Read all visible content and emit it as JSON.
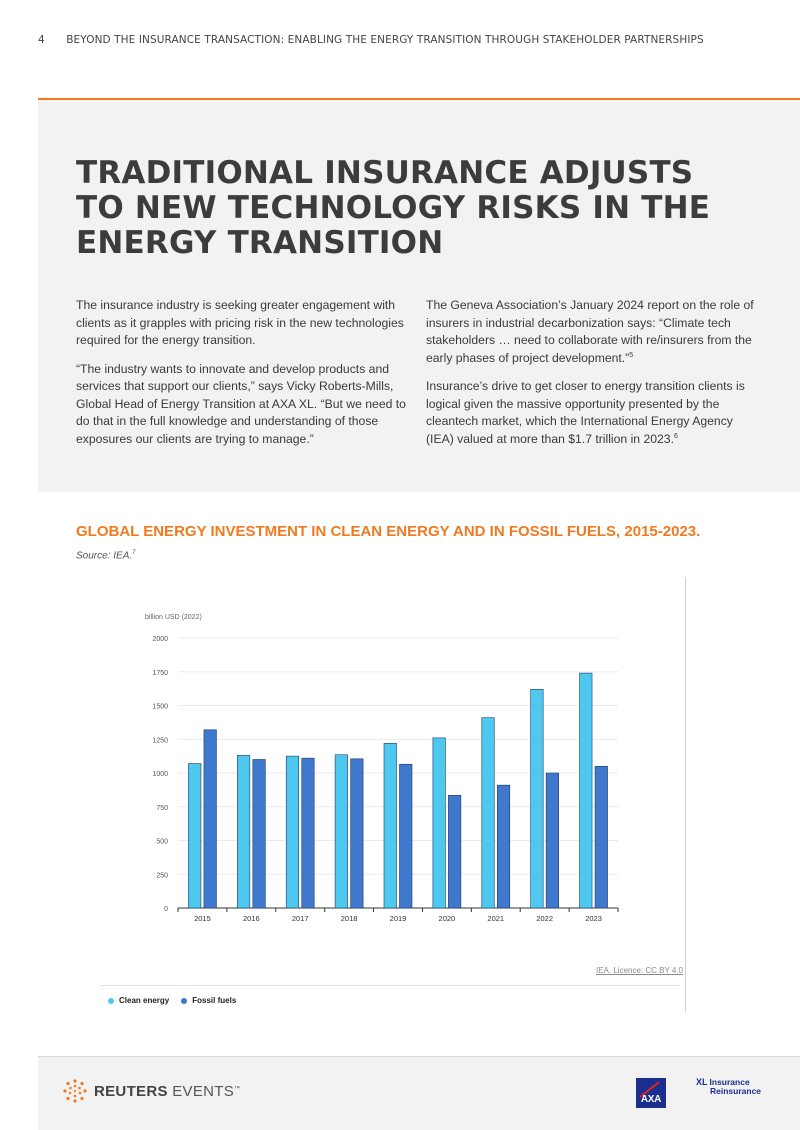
{
  "header": {
    "page_number": "4",
    "running_title": "BEYOND THE INSURANCE TRANSACTION: ENABLING THE ENERGY TRANSITION THROUGH STAKEHOLDER PARTNERSHIPS"
  },
  "article": {
    "headline": "TRADITIONAL INSURANCE ADJUSTS TO NEW TECHNOLOGY RISKS IN THE ENERGY TRANSITION",
    "left_column": [
      "The insurance industry is seeking greater engagement with clients as it grapples with pricing risk in the new technologies required for the energy transition.",
      "“The industry wants to innovate and develop products and services that support our clients,” says Vicky Roberts-Mills, Global Head of Energy Transition at AXA XL. “But we need to do that in the full knowledge and understanding of those exposures our clients are trying to manage.”"
    ],
    "right_column": {
      "p1": "The Geneva Association’s January 2024 report on the role of insurers in industrial decarbonization says: “Climate tech stakeholders … need to collaborate with re/insurers from the early phases of project development.”",
      "p1_note": "5",
      "p2": "Insurance’s drive to get closer to energy transition clients is logical given the massive opportunity presented by the cleantech market, which the International Energy Agency (IEA) valued at more than $1.7 trillion in 2023.",
      "p2_note": "6"
    }
  },
  "chart_section": {
    "title": "GLOBAL ENERGY INVESTMENT IN CLEAN ENERGY AND IN FOSSIL FUELS, 2015-2023.",
    "source": "Source: IEA.",
    "source_note": "7",
    "licence": "IEA. Licence: CC BY 4.0"
  },
  "chart_data": {
    "type": "bar",
    "ylabel": "billion USD (2022)",
    "ylim": [
      0,
      2000
    ],
    "yticks": [
      0,
      250,
      500,
      750,
      1000,
      1250,
      1500,
      1750,
      2000
    ],
    "categories": [
      "2015",
      "2016",
      "2017",
      "2018",
      "2019",
      "2020",
      "2021",
      "2022",
      "2023"
    ],
    "series": [
      {
        "name": "Clean energy",
        "color": "#4fc8f0",
        "values": [
          1070,
          1130,
          1125,
          1135,
          1220,
          1260,
          1410,
          1620,
          1740
        ]
      },
      {
        "name": "Fossil fuels",
        "color": "#3f78cc",
        "values": [
          1320,
          1100,
          1110,
          1105,
          1065,
          835,
          910,
          1000,
          1050
        ]
      }
    ],
    "legend_position": "bottom-left",
    "grid": true
  },
  "footer": {
    "reuters_brand": "REUTERS",
    "reuters_events": "EVENTS",
    "reuters_tm": "™",
    "axa_mark": "AXA",
    "xl_line1": "Insurance",
    "xl_line2": "Reinsurance",
    "xl_mark": "XL"
  }
}
